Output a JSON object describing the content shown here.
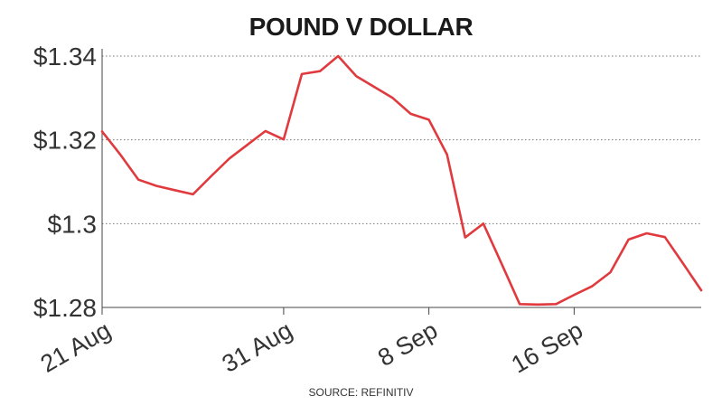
{
  "chart_data": {
    "type": "line",
    "title": "POUND V DOLLAR",
    "source": "SOURCE: REFINITIV",
    "xlabel": "",
    "ylabel": "",
    "ylim": [
      1.28,
      1.34
    ],
    "yticks": [
      {
        "value": 1.34,
        "label": "$1.34"
      },
      {
        "value": 1.32,
        "label": "$1.32"
      },
      {
        "value": 1.3,
        "label": "$1.3"
      },
      {
        "value": 1.28,
        "label": "$1.28"
      }
    ],
    "xticks": [
      {
        "date": "2020-08-21",
        "label": "21 Aug"
      },
      {
        "date": "2020-08-31",
        "label": "31 Aug"
      },
      {
        "date": "2020-09-08",
        "label": "8 Sep"
      },
      {
        "date": "2020-09-16",
        "label": "16 Sep"
      }
    ],
    "xlim": [
      "2020-08-21",
      "2020-09-23"
    ],
    "grid": "horizontal-dotted",
    "line_color": "#e03a3e",
    "series": [
      {
        "x": [
          "2020-08-21",
          "2020-08-22",
          "2020-08-23",
          "2020-08-24",
          "2020-08-25",
          "2020-08-26",
          "2020-08-27",
          "2020-08-28",
          "2020-08-29",
          "2020-08-30",
          "2020-08-31",
          "2020-09-01",
          "2020-09-02",
          "2020-09-03",
          "2020-09-04",
          "2020-09-05",
          "2020-09-06",
          "2020-09-07",
          "2020-09-08",
          "2020-09-09",
          "2020-09-10",
          "2020-09-11",
          "2020-09-12",
          "2020-09-13",
          "2020-09-14",
          "2020-09-15",
          "2020-09-16",
          "2020-09-17",
          "2020-09-18",
          "2020-09-19",
          "2020-09-20",
          "2020-09-21",
          "2020-09-22",
          "2020-09-23"
        ],
        "y": [
          1.322,
          1.3165,
          1.3105,
          1.309,
          1.308,
          1.307,
          1.3113,
          1.3155,
          1.3188,
          1.3221,
          1.3201,
          1.3357,
          1.3364,
          1.34,
          1.3352,
          1.3326,
          1.33,
          1.3262,
          1.3248,
          1.3165,
          1.2967,
          1.3,
          1.2905,
          1.2808,
          1.2807,
          1.2808,
          1.283,
          1.2851,
          1.2884,
          1.2962,
          1.2977,
          1.2968,
          1.2905,
          1.2841
        ]
      }
    ]
  }
}
